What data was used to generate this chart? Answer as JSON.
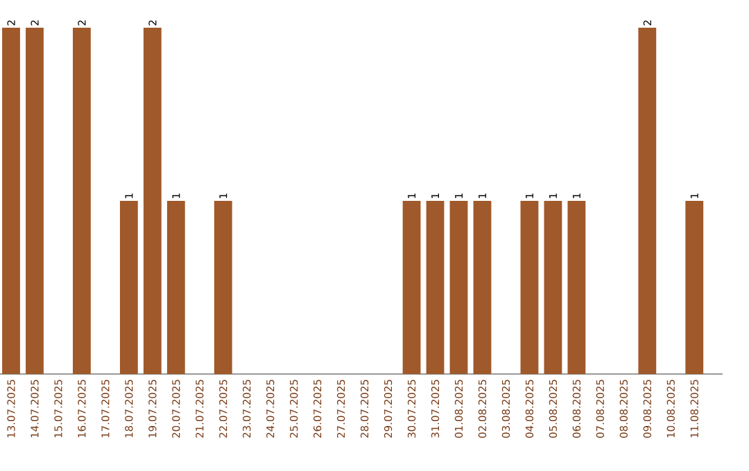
{
  "chart_data": {
    "type": "bar",
    "color": "#a0592a",
    "categories": [
      "13.07.2025",
      "14.07.2025",
      "15.07.2025",
      "16.07.2025",
      "17.07.2025",
      "18.07.2025",
      "19.07.2025",
      "20.07.2025",
      "21.07.2025",
      "22.07.2025",
      "23.07.2025",
      "24.07.2025",
      "25.07.2025",
      "26.07.2025",
      "27.07.2025",
      "28.07.2025",
      "29.07.2025",
      "30.07.2025",
      "31.07.2025",
      "01.08.2025",
      "02.08.2025",
      "03.08.2025",
      "04.08.2025",
      "05.08.2025",
      "06.08.2025",
      "07.08.2025",
      "08.08.2025",
      "09.08.2025",
      "10.08.2025",
      "11.08.2025"
    ],
    "values": [
      2,
      2,
      0,
      2,
      0,
      1,
      2,
      1,
      0,
      1,
      0,
      0,
      0,
      0,
      0,
      0,
      0,
      1,
      1,
      1,
      1,
      0,
      1,
      1,
      1,
      0,
      0,
      2,
      0,
      1
    ],
    "value_labels": [
      "2",
      "2",
      null,
      "2",
      null,
      "1",
      "2",
      "1",
      null,
      "1",
      null,
      null,
      null,
      null,
      null,
      null,
      null,
      "1",
      "1",
      "1",
      "1",
      null,
      "1",
      "1",
      "1",
      null,
      null,
      "2",
      null,
      "1"
    ]
  }
}
